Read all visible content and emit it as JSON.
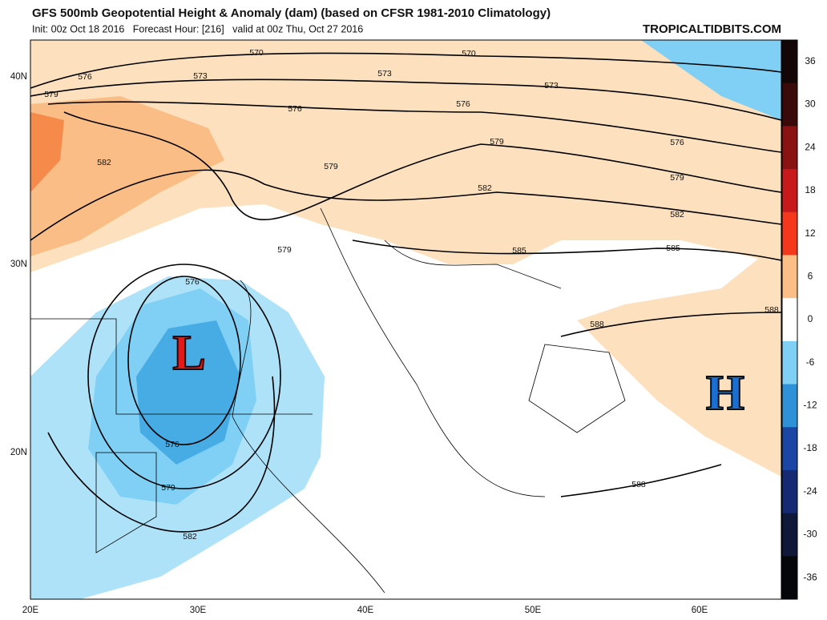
{
  "header": {
    "title": "GFS 500mb Geopotential Height & Anomaly (dam) (based on CFSR 1981-2010 Climatology)",
    "subtitle": "Init: 00z Oct 18 2016   Forecast Hour: [216]   valid at 00z Thu, Oct 27 2016",
    "site": "TROPICALTIDBITS.COM"
  },
  "map": {
    "lat_labels": [
      "40N",
      "30N",
      "20N"
    ],
    "lon_labels": [
      "20E",
      "30E",
      "40E",
      "50E",
      "60E"
    ],
    "contour_labels": [
      570,
      570,
      576,
      573,
      573,
      573,
      579,
      576,
      576,
      576,
      582,
      579,
      579,
      579,
      582,
      582,
      585,
      585,
      588,
      588,
      576,
      576,
      579,
      582,
      588,
      579
    ],
    "symbols": [
      "L",
      "H"
    ]
  },
  "colorbar": {
    "ticks": [
      36,
      30,
      24,
      18,
      12,
      6,
      0,
      -6,
      -12,
      -18,
      -24,
      -30,
      -36
    ],
    "colors": [
      "#140606",
      "#3a0a0a",
      "#8a1212",
      "#c81a1a",
      "#f5381c",
      "#fbbe86",
      "#ffffff",
      "#7fd0f4",
      "#2f92d8",
      "#1c46a6",
      "#152a72",
      "#0f1838",
      "#05060a"
    ]
  }
}
